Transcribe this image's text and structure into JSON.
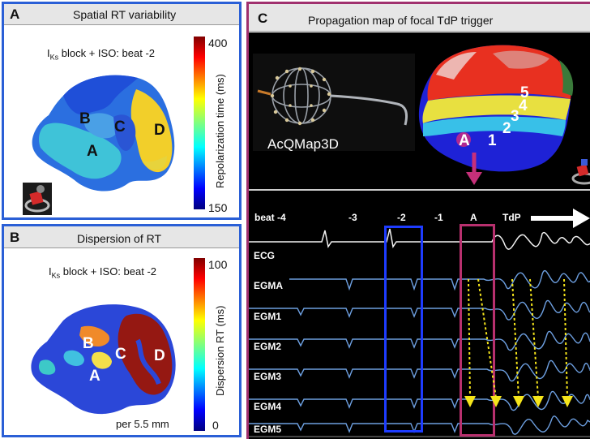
{
  "panelA": {
    "letter": "A",
    "title": "Spatial RT variability",
    "subtitle_main": "I",
    "subtitle_sub": "Ks",
    "subtitle_rest": " block + ISO: beat -2",
    "colorbar_max": "400",
    "colorbar_min": "150",
    "colorbar_label": "Repolarization time (ms)",
    "regions": [
      "A",
      "B",
      "C",
      "D"
    ]
  },
  "panelB": {
    "letter": "B",
    "title": "Dispersion of RT",
    "subtitle_main": "I",
    "subtitle_sub": "Ks",
    "subtitle_rest": " block + ISO: beat -2",
    "colorbar_max": "100",
    "colorbar_min": "0",
    "colorbar_label": "Dispersion RT (ms)",
    "note": "per 5.5 mm",
    "regions": [
      "A",
      "B",
      "C",
      "D"
    ]
  },
  "panelC": {
    "letter": "C",
    "title": "Propagation map of focal TdP trigger",
    "catheter_label": "AcQMap3D",
    "map_labels": [
      "A",
      "1",
      "2",
      "3",
      "4",
      "5"
    ],
    "beats": [
      "beat -4",
      "-3",
      "-2",
      "-1",
      "A",
      "TdP"
    ],
    "traces": [
      "ECG",
      "EGMA",
      "EGM1",
      "EGM2",
      "EGM3",
      "EGM4",
      "EGM5"
    ]
  },
  "colors": {
    "panelA_border": "#2a5fd6",
    "panelC_border": "#a0306e",
    "blue_box": "#1e3cff",
    "magenta_box": "#b8306e",
    "arrow_yellow": "#f5e51b",
    "trace": "#6d9fe0"
  }
}
